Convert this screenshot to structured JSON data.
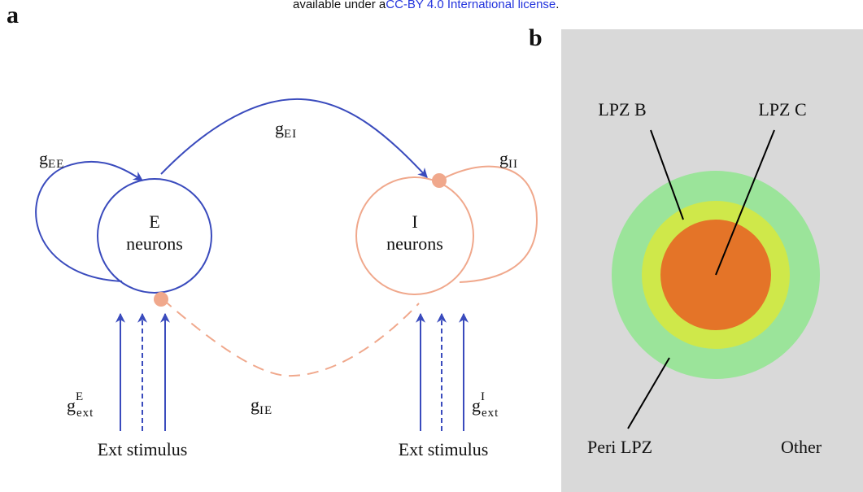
{
  "header": {
    "text": "available under a",
    "link": "CC-BY 4.0 International license",
    "end": "."
  },
  "panel_a": {
    "label": "a",
    "nodes": [
      {
        "name": "E",
        "line2": "neurons"
      },
      {
        "name": "I",
        "line2": "neurons"
      }
    ],
    "edges": {
      "ee": {
        "base": "g",
        "sub": "EE"
      },
      "ei": {
        "base": "g",
        "sub": "EI"
      },
      "ii": {
        "base": "g",
        "sub": "II"
      },
      "ie": {
        "base": "g",
        "sub": "IE"
      }
    },
    "inputs": [
      {
        "base": "g",
        "sub": "ext",
        "sup": "E",
        "source": "Ext stimulus"
      },
      {
        "base": "g",
        "sub": "ext",
        "sup": "I",
        "source": "Ext stimulus"
      }
    ]
  },
  "panel_b": {
    "label": "b",
    "regions": [
      "LPZ B",
      "LPZ C",
      "Peri LPZ",
      "Other"
    ]
  }
}
